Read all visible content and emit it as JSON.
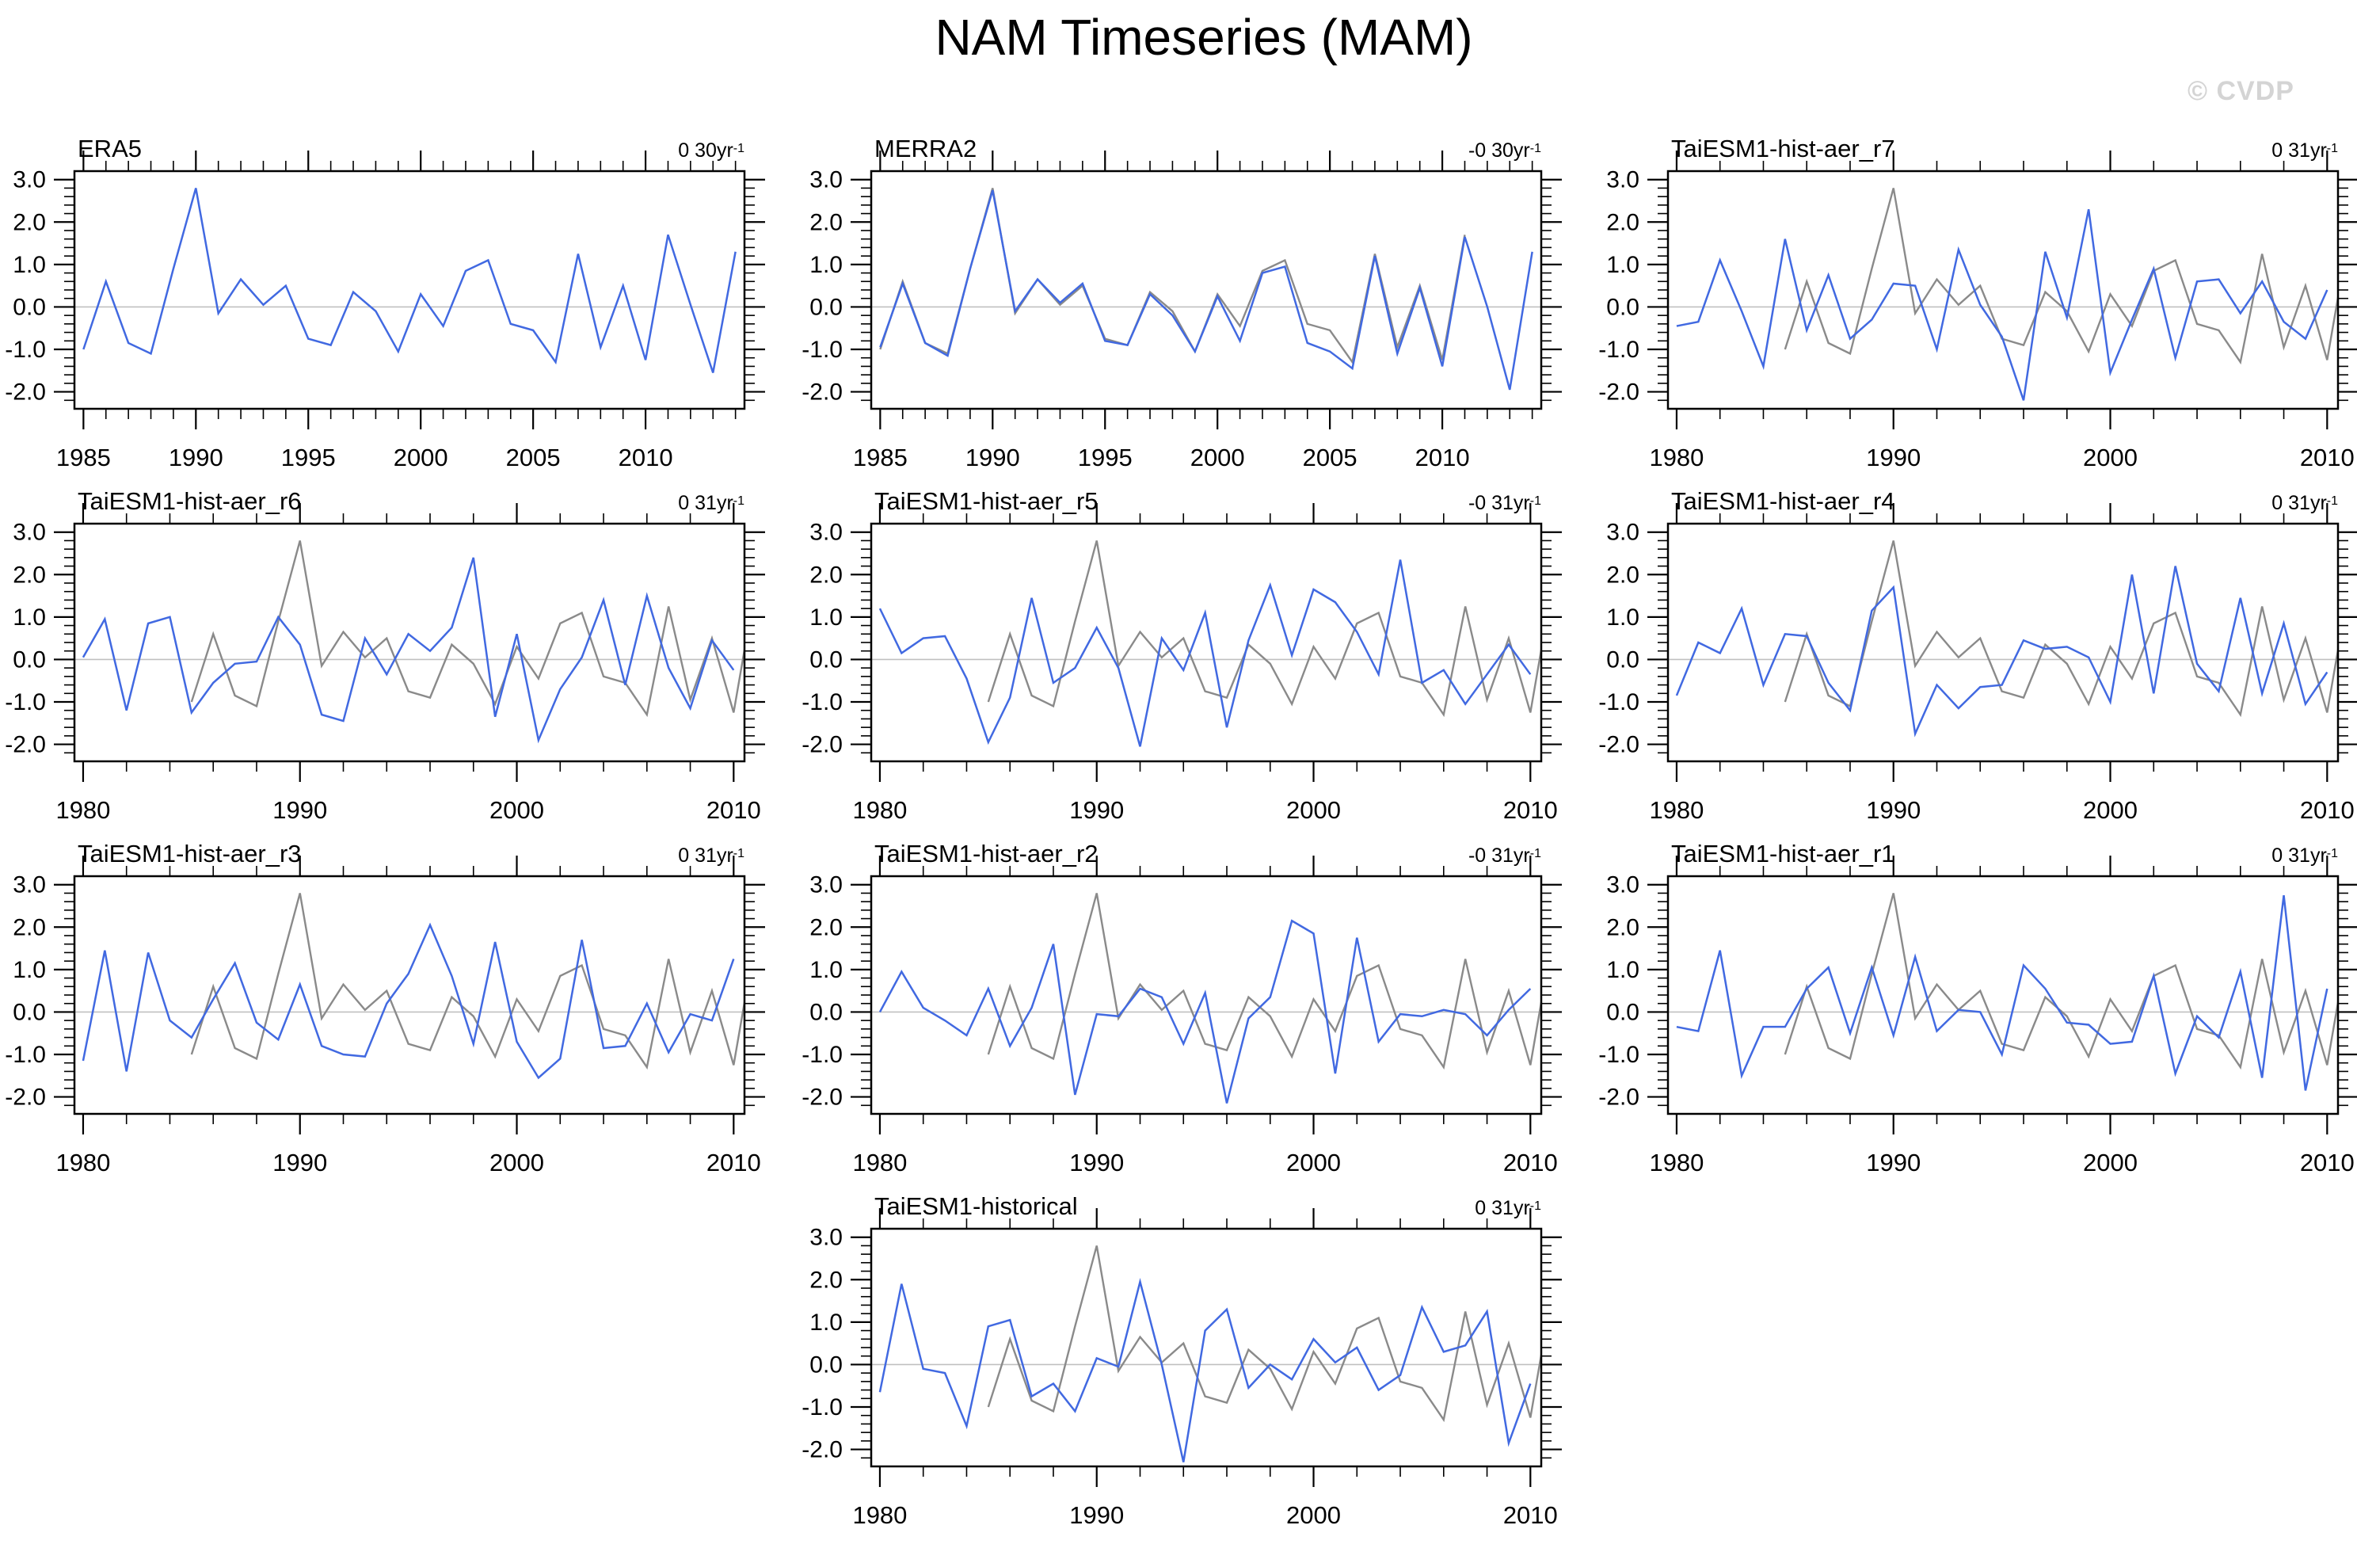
{
  "page": {
    "title": "NAM Timeseries (MAM)",
    "watermark": "© CVDP"
  },
  "style": {
    "series_blue": "#4169E1",
    "series_gray": "#8a8a8a",
    "zero_line": "#c0c0c0",
    "axis_color": "#000000",
    "watermark_color": "#d4d4d4"
  },
  "chart_data": {
    "type": "line",
    "title": "NAM Timeseries (MAM)",
    "ylabel": "",
    "xlabel": "",
    "ylim": [
      -2.4,
      3.2
    ],
    "y_tick_labels": [
      "3.0",
      "2.0",
      "1.0",
      "0.0",
      "-1.0",
      "-2.0"
    ],
    "y_tick_values": [
      3,
      2,
      1,
      0,
      -1,
      -2
    ],
    "grid": "zero-line-only",
    "legend": "none",
    "overlay_note": "gray line = ERA5 reference overlaid on model panels (1985-2010, clipped at right edge)",
    "era5_overlay": {
      "x_start": 1985,
      "values": [
        -1.0,
        0.6,
        -0.85,
        -1.1,
        0.9,
        2.8,
        -0.15,
        0.65,
        0.05,
        0.5,
        -0.75,
        -0.9,
        0.35,
        -0.1,
        -1.05,
        0.3,
        -0.45,
        0.85,
        1.1,
        -0.4,
        -0.55,
        -1.3,
        1.25,
        -0.95,
        0.5,
        -1.25,
        1.7
      ]
    },
    "panels": [
      {
        "id": "era5",
        "title": "ERA5",
        "trend": "0 30yr",
        "trend_exp": "-1",
        "grid_pos": [
          0,
          0
        ],
        "x_start": 1985,
        "x_end": 2014,
        "xlim": [
          1984.6,
          2014.4
        ],
        "x_tick_labels": [
          1985,
          1990,
          1995,
          2000,
          2005,
          2010
        ],
        "x_minor_step": 1,
        "values": [
          -1.0,
          0.6,
          -0.85,
          -1.1,
          0.9,
          2.8,
          -0.15,
          0.65,
          0.05,
          0.5,
          -0.75,
          -0.9,
          0.35,
          -0.1,
          -1.05,
          0.3,
          -0.45,
          0.85,
          1.1,
          -0.4,
          -0.55,
          -1.3,
          1.25,
          -0.95,
          0.5,
          -1.25,
          1.7,
          0.05,
          -1.55,
          1.3
        ],
        "overlay": false
      },
      {
        "id": "merra2",
        "title": "MERRA2",
        "trend": "-0 30yr",
        "trend_exp": "-1",
        "grid_pos": [
          0,
          1
        ],
        "x_start": 1985,
        "x_end": 2014,
        "xlim": [
          1984.6,
          2014.4
        ],
        "x_tick_labels": [
          1985,
          1990,
          1995,
          2000,
          2005,
          2010
        ],
        "x_minor_step": 1,
        "values": [
          -0.95,
          0.55,
          -0.85,
          -1.15,
          0.9,
          2.75,
          -0.1,
          0.65,
          0.1,
          0.55,
          -0.8,
          -0.9,
          0.3,
          -0.2,
          -1.05,
          0.25,
          -0.8,
          0.8,
          0.95,
          -0.85,
          -1.05,
          -1.45,
          1.2,
          -1.1,
          0.45,
          -1.4,
          1.65,
          0.0,
          -1.95,
          1.3
        ],
        "overlay": true,
        "overlay_end": 2014
      },
      {
        "id": "taiesm1-hist-aer-r7",
        "title": "TaiESM1-hist-aer_r7",
        "trend": "0 31yr",
        "trend_exp": "-1",
        "grid_pos": [
          0,
          2
        ],
        "x_start": 1980,
        "x_end": 2010,
        "xlim": [
          1979.6,
          2010.5
        ],
        "x_tick_labels": [
          1980,
          1990,
          2000,
          2010
        ],
        "x_minor_step": 2,
        "values": [
          -0.45,
          -0.35,
          1.1,
          -0.1,
          -1.4,
          1.6,
          -0.55,
          0.75,
          -0.75,
          -0.3,
          0.55,
          0.5,
          -1.0,
          1.35,
          0.05,
          -0.7,
          -2.2,
          1.3,
          -0.25,
          2.3,
          -1.55,
          -0.3,
          0.9,
          -1.2,
          0.6,
          0.65,
          -0.15,
          0.6,
          -0.35,
          -0.75,
          0.4
        ],
        "overlay": true,
        "overlay_end": 2011
      },
      {
        "id": "taiesm1-hist-aer-r6",
        "title": "TaiESM1-hist-aer_r6",
        "trend": "0 31yr",
        "trend_exp": "-1",
        "grid_pos": [
          1,
          0
        ],
        "x_start": 1980,
        "x_end": 2010,
        "xlim": [
          1979.6,
          2010.5
        ],
        "x_tick_labels": [
          1980,
          1990,
          2000,
          2010
        ],
        "x_minor_step": 2,
        "values": [
          0.05,
          0.95,
          -1.2,
          0.85,
          1.0,
          -1.25,
          -0.55,
          -0.1,
          -0.05,
          1.0,
          0.35,
          -1.3,
          -1.45,
          0.5,
          -0.35,
          0.6,
          0.2,
          0.75,
          2.4,
          -1.35,
          0.6,
          -1.9,
          -0.7,
          0.05,
          1.4,
          -0.6,
          1.5,
          -0.2,
          -1.15,
          0.45,
          -0.25
        ],
        "overlay": true,
        "overlay_end": 2011
      },
      {
        "id": "taiesm1-hist-aer-r5",
        "title": "TaiESM1-hist-aer_r5",
        "trend": "-0 31yr",
        "trend_exp": "-1",
        "grid_pos": [
          1,
          1
        ],
        "x_start": 1980,
        "x_end": 2010,
        "xlim": [
          1979.6,
          2010.5
        ],
        "x_tick_labels": [
          1980,
          1990,
          2000,
          2010
        ],
        "x_minor_step": 2,
        "values": [
          1.2,
          0.15,
          0.5,
          0.55,
          -0.45,
          -1.95,
          -0.9,
          1.45,
          -0.55,
          -0.2,
          0.75,
          -0.2,
          -2.05,
          0.5,
          -0.25,
          1.1,
          -1.6,
          0.45,
          1.75,
          0.1,
          1.65,
          1.35,
          0.65,
          -0.35,
          2.35,
          -0.55,
          -0.25,
          -1.05,
          -0.35,
          0.35,
          -0.35
        ],
        "overlay": true,
        "overlay_end": 2011
      },
      {
        "id": "taiesm1-hist-aer-r4",
        "title": "TaiESM1-hist-aer_r4",
        "trend": "0 31yr",
        "trend_exp": "-1",
        "grid_pos": [
          1,
          2
        ],
        "x_start": 1980,
        "x_end": 2010,
        "xlim": [
          1979.6,
          2010.5
        ],
        "x_tick_labels": [
          1980,
          1990,
          2000,
          2010
        ],
        "x_minor_step": 2,
        "values": [
          -0.85,
          0.4,
          0.15,
          1.2,
          -0.6,
          0.6,
          0.55,
          -0.55,
          -1.2,
          1.15,
          1.7,
          -1.75,
          -0.6,
          -1.15,
          -0.65,
          -0.6,
          0.45,
          0.25,
          0.3,
          0.05,
          -1.0,
          2.0,
          -0.8,
          2.2,
          -0.1,
          -0.75,
          1.45,
          -0.8,
          0.85,
          -1.05,
          -0.3
        ],
        "overlay": true,
        "overlay_end": 2011
      },
      {
        "id": "taiesm1-hist-aer-r3",
        "title": "TaiESM1-hist-aer_r3",
        "trend": "0 31yr",
        "trend_exp": "-1",
        "grid_pos": [
          2,
          0
        ],
        "x_start": 1980,
        "x_end": 2010,
        "xlim": [
          1979.6,
          2010.5
        ],
        "x_tick_labels": [
          1980,
          1990,
          2000,
          2010
        ],
        "x_minor_step": 2,
        "values": [
          -1.15,
          1.45,
          -1.4,
          1.4,
          -0.2,
          -0.6,
          0.3,
          1.15,
          -0.25,
          -0.65,
          0.65,
          -0.8,
          -1.0,
          -1.05,
          0.2,
          0.9,
          2.05,
          0.85,
          -0.75,
          1.65,
          -0.7,
          -1.55,
          -1.1,
          1.7,
          -0.85,
          -0.8,
          0.2,
          -0.95,
          -0.05,
          -0.2,
          1.25
        ],
        "overlay": true,
        "overlay_end": 2011
      },
      {
        "id": "taiesm1-hist-aer-r2",
        "title": "TaiESM1-hist-aer_r2",
        "trend": "-0 31yr",
        "trend_exp": "-1",
        "grid_pos": [
          2,
          1
        ],
        "x_start": 1980,
        "x_end": 2010,
        "xlim": [
          1979.6,
          2010.5
        ],
        "x_tick_labels": [
          1980,
          1990,
          2000,
          2010
        ],
        "x_minor_step": 2,
        "values": [
          0.0,
          0.95,
          0.1,
          -0.2,
          -0.55,
          0.55,
          -0.8,
          0.1,
          1.6,
          -1.95,
          -0.05,
          -0.1,
          0.55,
          0.35,
          -0.75,
          0.45,
          -2.15,
          -0.15,
          0.35,
          2.15,
          1.85,
          -1.45,
          1.75,
          -0.7,
          -0.05,
          -0.1,
          0.05,
          -0.05,
          -0.55,
          0.05,
          0.55
        ],
        "overlay": true,
        "overlay_end": 2011
      },
      {
        "id": "taiesm1-hist-aer-r1",
        "title": "TaiESM1-hist-aer_r1",
        "trend": "0 31yr",
        "trend_exp": "-1",
        "grid_pos": [
          2,
          2
        ],
        "x_start": 1980,
        "x_end": 2010,
        "xlim": [
          1979.6,
          2010.5
        ],
        "x_tick_labels": [
          1980,
          1990,
          2000,
          2010
        ],
        "x_minor_step": 2,
        "values": [
          -0.35,
          -0.45,
          1.45,
          -1.5,
          -0.35,
          -0.35,
          0.55,
          1.05,
          -0.5,
          1.05,
          -0.55,
          1.3,
          -0.45,
          0.05,
          0.0,
          -1.0,
          1.1,
          0.55,
          -0.25,
          -0.3,
          -0.75,
          -0.7,
          0.85,
          -1.45,
          -0.1,
          -0.6,
          0.95,
          -1.55,
          2.75,
          -1.85,
          0.55
        ],
        "overlay": true,
        "overlay_end": 2011
      },
      {
        "id": "taiesm1-historical",
        "title": "TaiESM1-historical",
        "trend": "0 31yr",
        "trend_exp": "-1",
        "grid_pos": [
          3,
          1
        ],
        "x_start": 1980,
        "x_end": 2010,
        "xlim": [
          1979.6,
          2010.5
        ],
        "x_tick_labels": [
          1980,
          1990,
          2000,
          2010
        ],
        "x_minor_step": 2,
        "values": [
          -0.65,
          1.9,
          -0.1,
          -0.2,
          -1.45,
          0.9,
          1.05,
          -0.75,
          -0.45,
          -1.1,
          0.15,
          -0.05,
          1.95,
          0.0,
          -2.3,
          0.8,
          1.3,
          -0.55,
          0.0,
          -0.35,
          0.6,
          0.05,
          0.4,
          -0.6,
          -0.25,
          1.35,
          0.3,
          0.45,
          1.25,
          -1.85,
          -0.45
        ],
        "overlay": true,
        "overlay_end": 2011
      }
    ]
  }
}
